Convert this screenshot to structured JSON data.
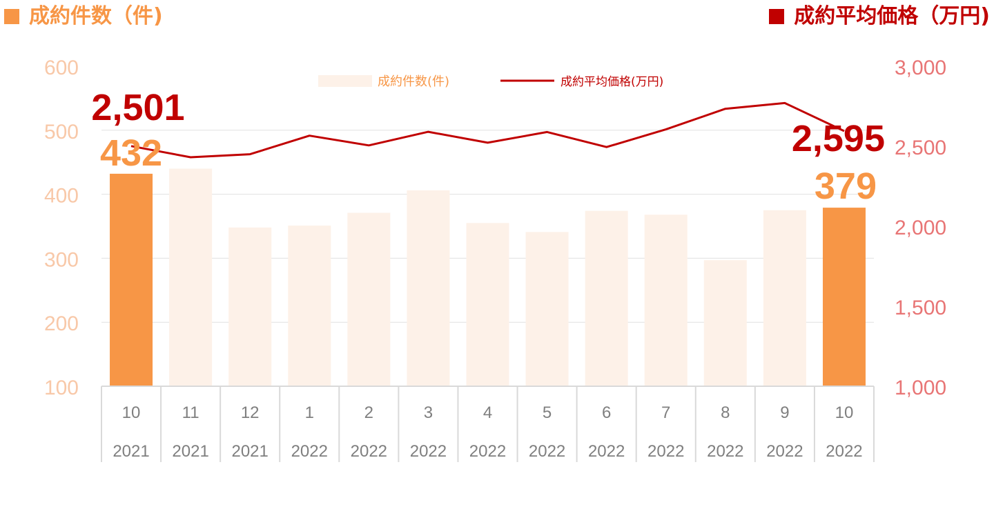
{
  "header": {
    "left_label": "成約件数（件)",
    "right_label": "成約平均価格（万円)"
  },
  "colors": {
    "highlight_bar": "#F79646",
    "faded_bar": "#FDF1E8",
    "line": "#C00000",
    "left_axis": "#F8C8A8",
    "right_axis": "#E87575",
    "header_left": "#F79646",
    "header_right": "#C00000",
    "count_label": "#F79646",
    "price_label": "#C00000",
    "grid": "#E0E0E0",
    "category_text": "#7F7F7F"
  },
  "chart_data": {
    "type": "bar+line",
    "categories": [
      {
        "month": "10",
        "year": "2021"
      },
      {
        "month": "11",
        "year": "2021"
      },
      {
        "month": "12",
        "year": "2021"
      },
      {
        "month": "1",
        "year": "2022"
      },
      {
        "month": "2",
        "year": "2022"
      },
      {
        "month": "3",
        "year": "2022"
      },
      {
        "month": "4",
        "year": "2022"
      },
      {
        "month": "5",
        "year": "2022"
      },
      {
        "month": "6",
        "year": "2022"
      },
      {
        "month": "7",
        "year": "2022"
      },
      {
        "month": "8",
        "year": "2022"
      },
      {
        "month": "9",
        "year": "2022"
      },
      {
        "month": "10",
        "year": "2022"
      }
    ],
    "series": [
      {
        "name": "成約件数(件)",
        "kind": "bar",
        "axis": "left",
        "values": [
          432,
          440,
          348,
          351,
          371,
          406,
          355,
          341,
          374,
          368,
          297,
          375,
          379
        ],
        "highlight_indices": [
          0,
          12
        ]
      },
      {
        "name": "成約平均価格(万円)",
        "kind": "line",
        "axis": "right",
        "values": [
          2501,
          2431,
          2450,
          2566,
          2505,
          2590,
          2522,
          2589,
          2495,
          2605,
          2734,
          2770,
          2595
        ]
      }
    ],
    "left_axis": {
      "min": 100,
      "max": 600,
      "ticks": [
        "600",
        "500",
        "400",
        "300",
        "200",
        "100"
      ]
    },
    "right_axis": {
      "min": 1000,
      "max": 3000,
      "ticks": [
        "3,000",
        "2,500",
        "2,000",
        "1,500",
        "1,000"
      ]
    },
    "legend": {
      "position": "top-center",
      "bar_label": "成約件数(件)",
      "line_label": "成約平均価格(万円)"
    },
    "annotations": [
      {
        "text": "2,501",
        "kind": "price",
        "index": 0
      },
      {
        "text": "432",
        "kind": "count",
        "index": 0
      },
      {
        "text": "2,595",
        "kind": "price",
        "index": 12
      },
      {
        "text": "379",
        "kind": "count",
        "index": 12
      }
    ],
    "gridlines": true
  }
}
